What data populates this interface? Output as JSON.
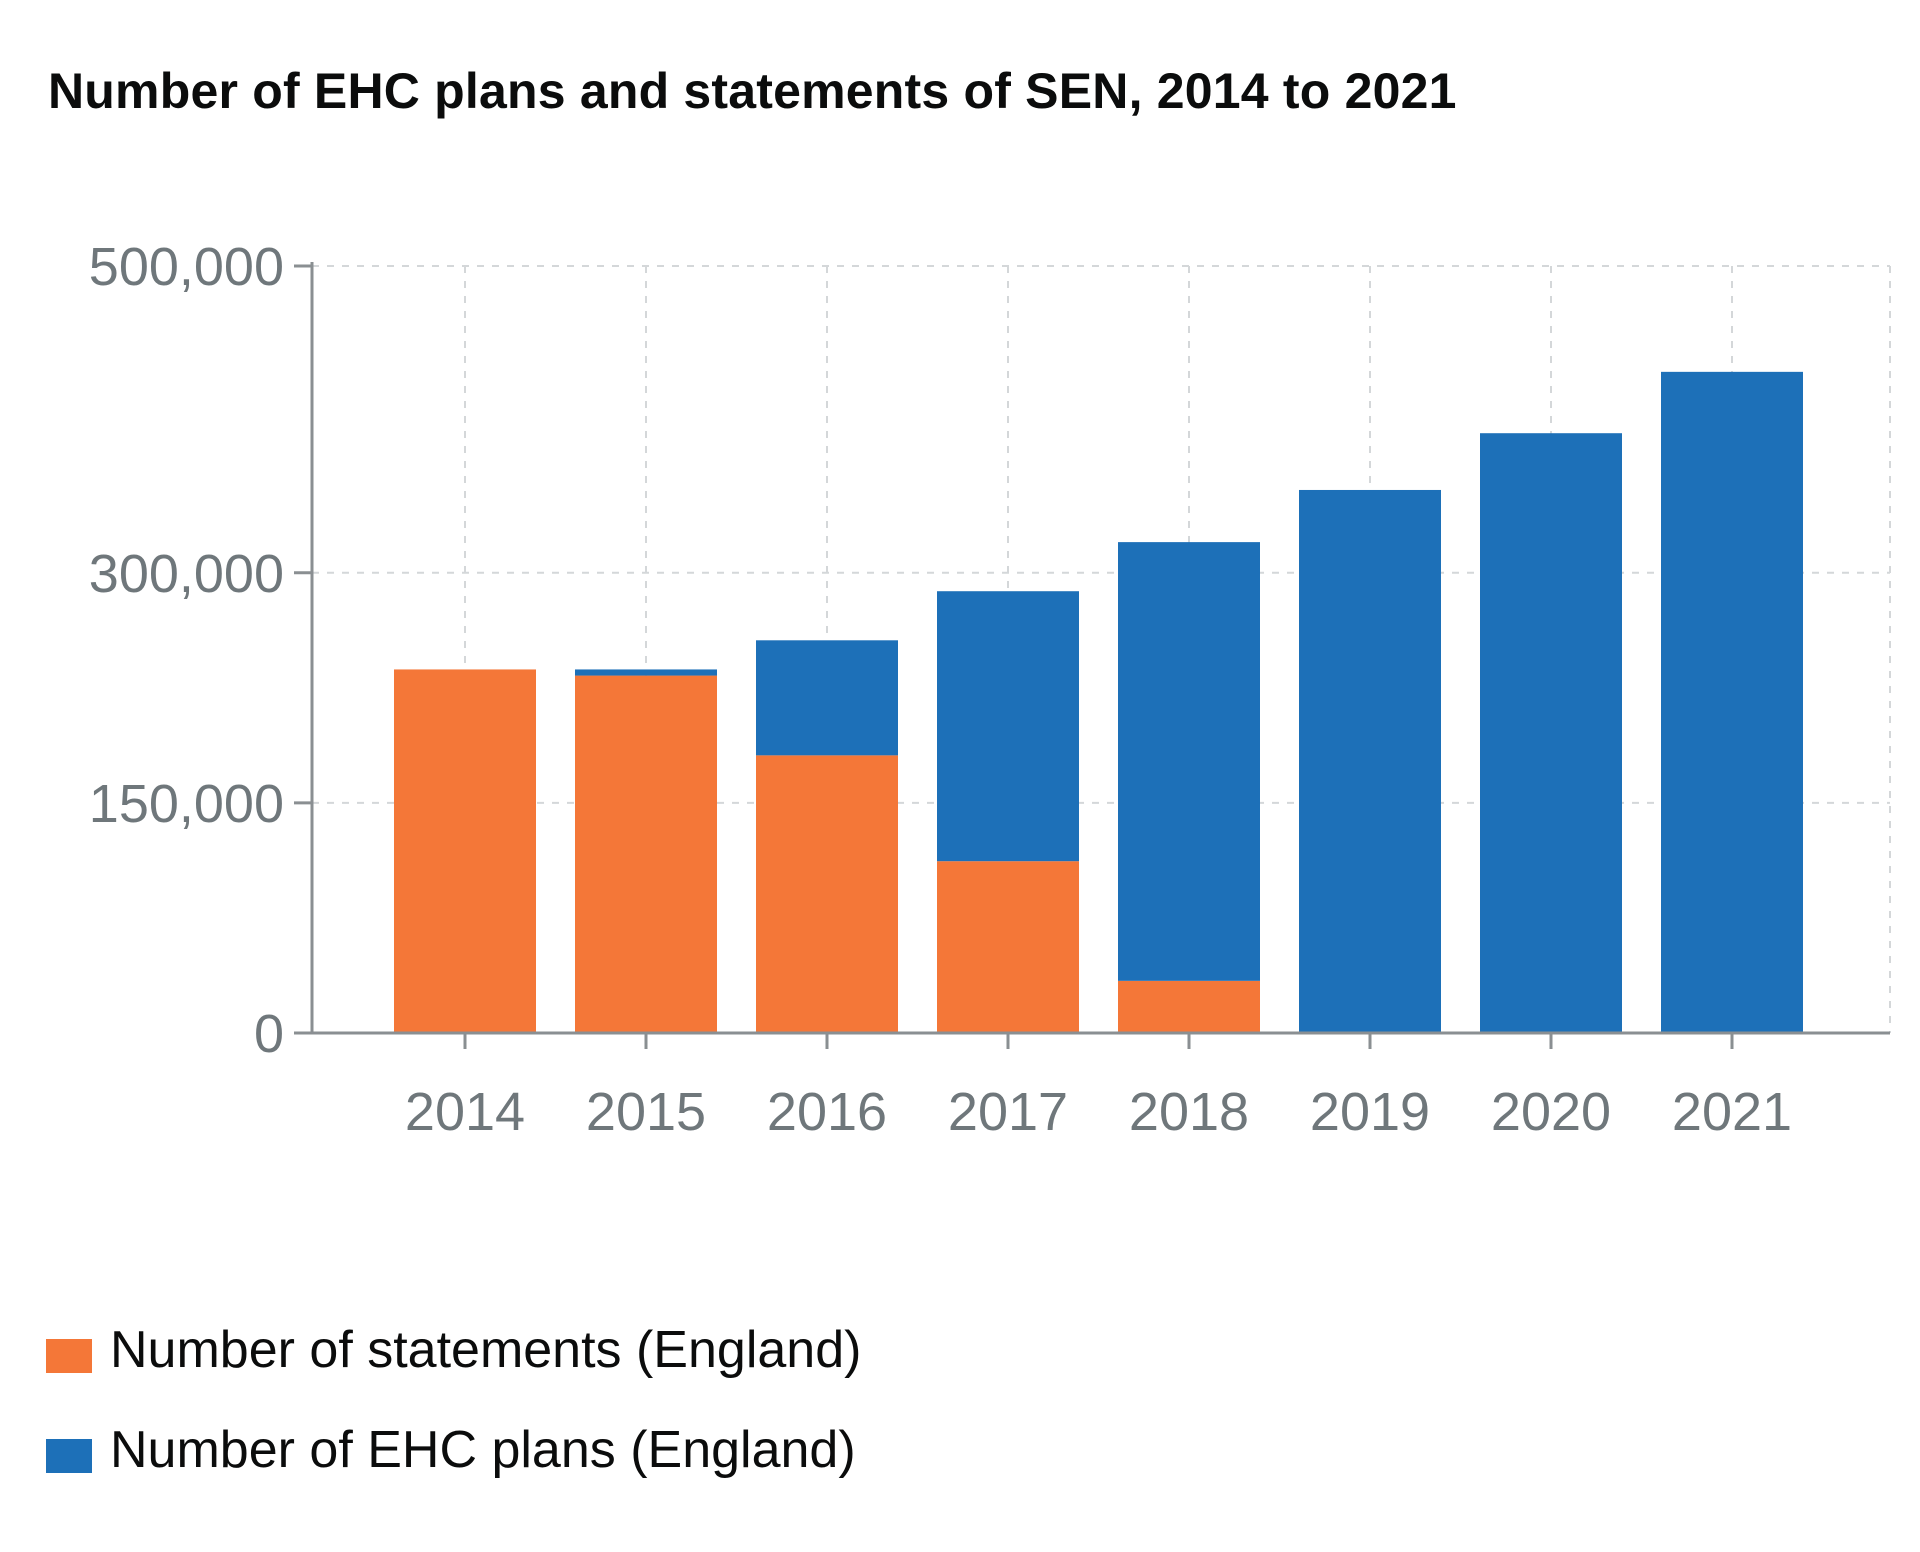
{
  "chart_data": {
    "type": "bar",
    "stacked": true,
    "title": "Number of EHC plans and statements of SEN, 2014 to 2021",
    "xlabel": "",
    "ylabel": "",
    "categories": [
      "2014",
      "2015",
      "2016",
      "2017",
      "2018",
      "2019",
      "2020",
      "2021"
    ],
    "yticks": [
      0,
      150000,
      300000,
      500000
    ],
    "ytick_labels": [
      "0",
      "150,000",
      "300,000",
      "500,000"
    ],
    "ylim": [
      0,
      500000
    ],
    "grid": true,
    "legend_position": "bottom-left",
    "series": [
      {
        "name": "Number of statements (England)",
        "color": "#f47738",
        "values": [
          237000,
          233000,
          181000,
          112000,
          34000,
          0,
          0,
          0
        ]
      },
      {
        "name": "Number of EHC plans (England)",
        "color": "#1d70b8",
        "values": [
          0,
          4000,
          75000,
          176000,
          286000,
          354000,
          391000,
          431000
        ]
      }
    ]
  }
}
